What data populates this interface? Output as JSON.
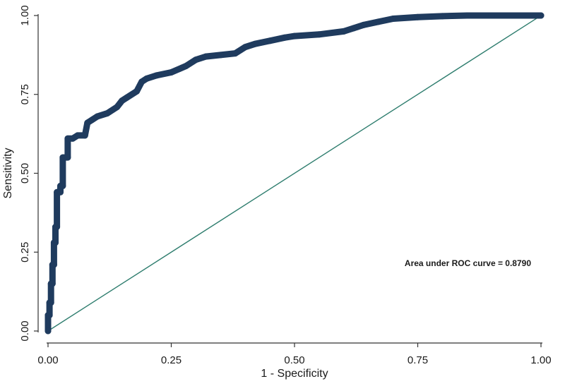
{
  "chart_data": {
    "type": "line",
    "title": "",
    "xlabel": "1 - Specificity",
    "ylabel": "Sensitivity",
    "xlim": [
      0,
      1
    ],
    "ylim": [
      0,
      1
    ],
    "x_ticks": [
      "0.00",
      "0.25",
      "0.50",
      "0.75",
      "1.00"
    ],
    "y_ticks": [
      "0.00",
      "0.25",
      "0.50",
      "0.75",
      "1.00"
    ],
    "grid": false,
    "annotation": "Area under ROC curve = 0.8790",
    "colors": {
      "roc": "#1f3b5e",
      "reference": "#2e7d6e",
      "axis": "#333333"
    },
    "series": [
      {
        "name": "ROC curve",
        "x": [
          0,
          0,
          0.003,
          0.003,
          0.006,
          0.006,
          0.009,
          0.009,
          0.012,
          0.012,
          0.015,
          0.015,
          0.018,
          0.018,
          0.025,
          0.025,
          0.03,
          0.03,
          0.04,
          0.04,
          0.05,
          0.06,
          0.075,
          0.08,
          0.09,
          0.1,
          0.12,
          0.14,
          0.15,
          0.16,
          0.18,
          0.19,
          0.2,
          0.22,
          0.25,
          0.28,
          0.3,
          0.32,
          0.35,
          0.38,
          0.4,
          0.42,
          0.45,
          0.48,
          0.5,
          0.55,
          0.6,
          0.62,
          0.64,
          0.67,
          0.7,
          0.75,
          0.8,
          0.85,
          0.9,
          1.0
        ],
        "y": [
          0,
          0.05,
          0.05,
          0.09,
          0.09,
          0.15,
          0.15,
          0.21,
          0.21,
          0.28,
          0.28,
          0.33,
          0.33,
          0.44,
          0.44,
          0.46,
          0.46,
          0.55,
          0.55,
          0.61,
          0.61,
          0.62,
          0.62,
          0.66,
          0.67,
          0.68,
          0.69,
          0.71,
          0.73,
          0.74,
          0.76,
          0.79,
          0.8,
          0.81,
          0.82,
          0.84,
          0.86,
          0.87,
          0.875,
          0.88,
          0.9,
          0.91,
          0.92,
          0.93,
          0.935,
          0.94,
          0.95,
          0.96,
          0.97,
          0.98,
          0.99,
          0.995,
          0.998,
          1.0,
          1.0,
          1.0
        ]
      },
      {
        "name": "Reference line",
        "x": [
          0,
          1
        ],
        "y": [
          0,
          1
        ]
      }
    ]
  }
}
